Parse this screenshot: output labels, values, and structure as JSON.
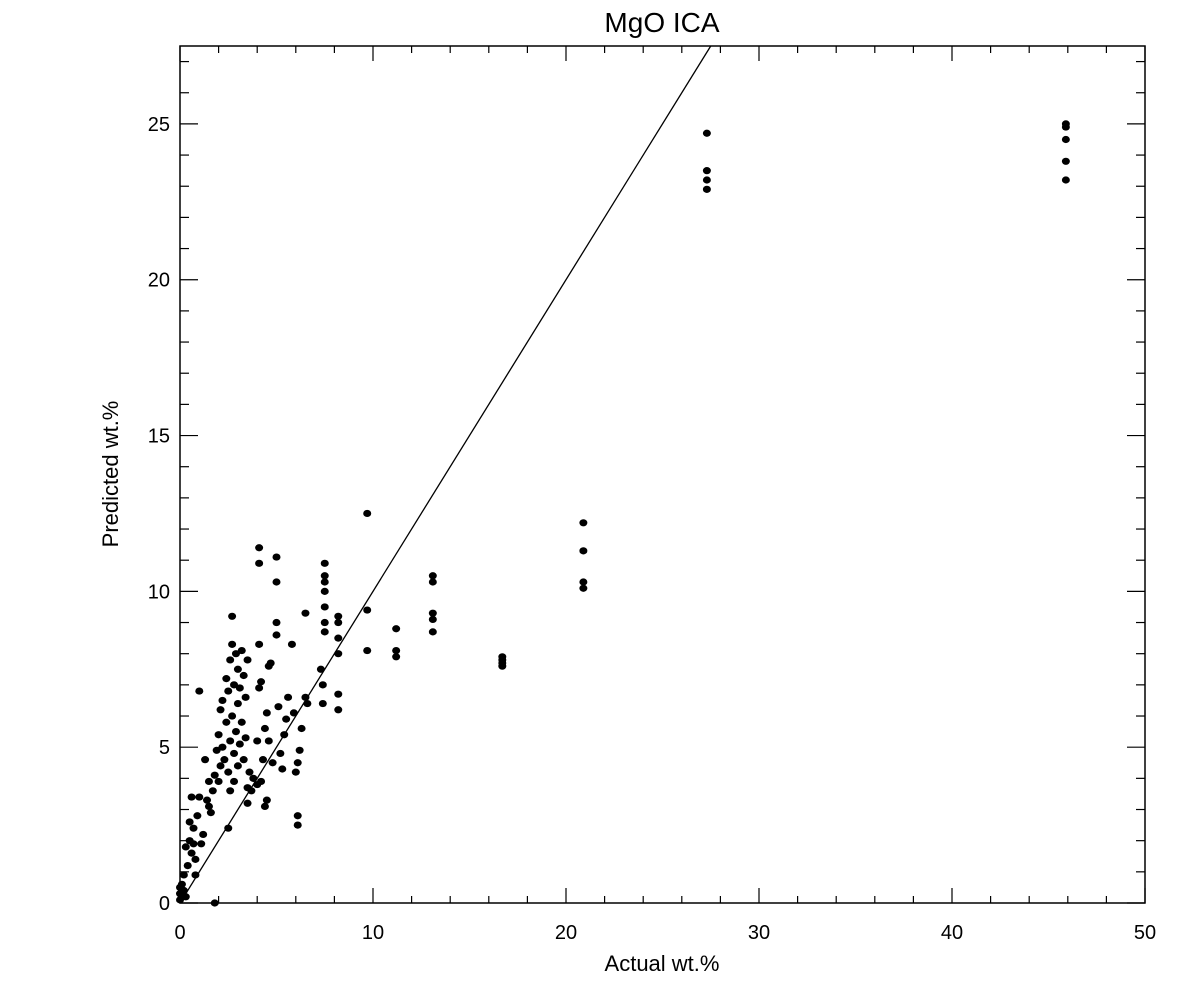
{
  "chart_data": {
    "type": "scatter",
    "title": "MgO ICA",
    "xlabel": "Actual wt.%",
    "ylabel": "Predicted wt.%",
    "xlim": [
      0,
      50
    ],
    "ylim": [
      0,
      27.5
    ],
    "x_ticks": [
      0,
      10,
      20,
      30,
      40,
      50
    ],
    "y_ticks": [
      0,
      5,
      10,
      15,
      20,
      25
    ],
    "x_tick_labels": [
      "0",
      "10",
      "20",
      "30",
      "40",
      "50"
    ],
    "y_tick_labels": [
      "0",
      "5",
      "10",
      "15",
      "20",
      "25"
    ],
    "x_minor_step": 2,
    "y_minor_step": 1,
    "grid": false,
    "legend": "none",
    "colors": {
      "points": "#000000",
      "line": "#000000",
      "axes": "#000000"
    },
    "reference_line": {
      "label": "",
      "x": [
        0,
        27.5
      ],
      "y": [
        0,
        27.5
      ]
    },
    "series": [
      {
        "points": [
          [
            0,
            0.1
          ],
          [
            0,
            0.3
          ],
          [
            0,
            0.5
          ],
          [
            0.1,
            0.2
          ],
          [
            0.1,
            0.6
          ],
          [
            0.2,
            0.4
          ],
          [
            0.2,
            0.9
          ],
          [
            0.3,
            0.2
          ],
          [
            0.3,
            1.8
          ],
          [
            0.4,
            1.2
          ],
          [
            0.5,
            2.0
          ],
          [
            0.5,
            2.6
          ],
          [
            0.6,
            1.6
          ],
          [
            0.6,
            3.4
          ],
          [
            0.7,
            1.9
          ],
          [
            0.7,
            2.4
          ],
          [
            0.8,
            0.9
          ],
          [
            0.8,
            1.4
          ],
          [
            0.9,
            2.8
          ],
          [
            1.0,
            3.4
          ],
          [
            1.0,
            6.8
          ],
          [
            1.1,
            1.9
          ],
          [
            1.2,
            2.2
          ],
          [
            1.3,
            4.6
          ],
          [
            1.4,
            3.3
          ],
          [
            1.5,
            3.9
          ],
          [
            1.5,
            3.1
          ],
          [
            1.6,
            2.9
          ],
          [
            1.7,
            3.6
          ],
          [
            1.8,
            0.0
          ],
          [
            1.8,
            4.1
          ],
          [
            1.9,
            4.9
          ],
          [
            2.0,
            3.9
          ],
          [
            2.0,
            5.4
          ],
          [
            2.1,
            4.4
          ],
          [
            2.1,
            6.2
          ],
          [
            2.2,
            5.0
          ],
          [
            2.2,
            6.5
          ],
          [
            2.3,
            4.6
          ],
          [
            2.4,
            5.8
          ],
          [
            2.4,
            7.2
          ],
          [
            2.5,
            4.2
          ],
          [
            2.5,
            6.8
          ],
          [
            2.5,
            2.4
          ],
          [
            2.6,
            3.6
          ],
          [
            2.6,
            5.2
          ],
          [
            2.6,
            7.8
          ],
          [
            2.7,
            8.3
          ],
          [
            2.7,
            9.2
          ],
          [
            2.7,
            6.0
          ],
          [
            2.8,
            3.9
          ],
          [
            2.8,
            4.8
          ],
          [
            2.8,
            7.0
          ],
          [
            2.9,
            5.5
          ],
          [
            2.9,
            8.0
          ],
          [
            3.0,
            4.4
          ],
          [
            3.0,
            6.4
          ],
          [
            3.0,
            7.5
          ],
          [
            3.1,
            5.1
          ],
          [
            3.1,
            6.9
          ],
          [
            3.2,
            5.8
          ],
          [
            3.2,
            8.1
          ],
          [
            3.3,
            4.6
          ],
          [
            3.3,
            7.3
          ],
          [
            3.4,
            5.3
          ],
          [
            3.4,
            6.6
          ],
          [
            3.5,
            3.2
          ],
          [
            3.5,
            3.7
          ],
          [
            3.5,
            7.8
          ],
          [
            3.6,
            4.2
          ],
          [
            3.7,
            3.6
          ],
          [
            3.8,
            4.0
          ],
          [
            4.0,
            3.8
          ],
          [
            4.0,
            5.2
          ],
          [
            4.1,
            6.9
          ],
          [
            4.1,
            8.3
          ],
          [
            4.1,
            10.9
          ],
          [
            4.1,
            11.4
          ],
          [
            4.2,
            3.9
          ],
          [
            4.2,
            7.1
          ],
          [
            4.3,
            4.6
          ],
          [
            4.4,
            3.1
          ],
          [
            4.4,
            5.6
          ],
          [
            4.5,
            3.3
          ],
          [
            4.5,
            6.1
          ],
          [
            4.6,
            5.2
          ],
          [
            4.6,
            7.6
          ],
          [
            4.7,
            7.7
          ],
          [
            4.8,
            4.5
          ],
          [
            5.0,
            8.6
          ],
          [
            5.0,
            9.0
          ],
          [
            5.0,
            10.3
          ],
          [
            5.0,
            11.1
          ],
          [
            5.1,
            6.3
          ],
          [
            5.2,
            4.8
          ],
          [
            5.3,
            4.3
          ],
          [
            5.4,
            5.4
          ],
          [
            5.5,
            5.9
          ],
          [
            5.6,
            6.6
          ],
          [
            5.8,
            8.3
          ],
          [
            5.9,
            6.1
          ],
          [
            6.0,
            4.2
          ],
          [
            6.1,
            4.5
          ],
          [
            6.1,
            2.5
          ],
          [
            6.1,
            2.8
          ],
          [
            6.2,
            4.9
          ],
          [
            6.3,
            5.6
          ],
          [
            6.5,
            9.3
          ],
          [
            6.5,
            6.6
          ],
          [
            6.6,
            6.4
          ],
          [
            7.3,
            7.5
          ],
          [
            7.4,
            6.4
          ],
          [
            7.4,
            7.0
          ],
          [
            7.5,
            8.7
          ],
          [
            7.5,
            9.0
          ],
          [
            7.5,
            9.5
          ],
          [
            7.5,
            10.0
          ],
          [
            7.5,
            10.3
          ],
          [
            7.5,
            10.5
          ],
          [
            7.5,
            10.9
          ],
          [
            8.2,
            6.2
          ],
          [
            8.2,
            6.7
          ],
          [
            8.2,
            8.0
          ],
          [
            8.2,
            8.5
          ],
          [
            8.2,
            9.0
          ],
          [
            8.2,
            9.2
          ],
          [
            9.7,
            8.1
          ],
          [
            9.7,
            9.4
          ],
          [
            9.7,
            12.5
          ],
          [
            11.2,
            7.9
          ],
          [
            11.2,
            8.1
          ],
          [
            11.2,
            8.8
          ],
          [
            13.1,
            8.7
          ],
          [
            13.1,
            9.1
          ],
          [
            13.1,
            9.3
          ],
          [
            13.1,
            10.3
          ],
          [
            13.1,
            10.5
          ],
          [
            16.7,
            7.6
          ],
          [
            16.7,
            7.7
          ],
          [
            16.7,
            7.8
          ],
          [
            16.7,
            7.9
          ],
          [
            20.9,
            10.1
          ],
          [
            20.9,
            10.3
          ],
          [
            20.9,
            11.3
          ],
          [
            20.9,
            12.2
          ],
          [
            27.3,
            22.9
          ],
          [
            27.3,
            23.2
          ],
          [
            27.3,
            23.5
          ],
          [
            27.3,
            24.7
          ],
          [
            45.9,
            23.2
          ],
          [
            45.9,
            23.8
          ],
          [
            45.9,
            24.5
          ],
          [
            45.9,
            24.9
          ],
          [
            45.9,
            25.0
          ]
        ]
      }
    ]
  }
}
